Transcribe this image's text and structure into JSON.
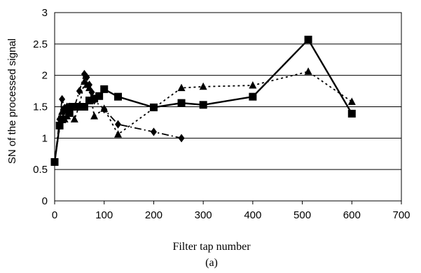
{
  "chart_data": {
    "type": "line",
    "xlabel": "Filter tap number",
    "ylabel": "SN of the processed signal",
    "caption": "(a)",
    "xlim": [
      0,
      700
    ],
    "ylim": [
      0,
      3
    ],
    "x_ticks": [
      "0",
      "100",
      "200",
      "300",
      "400",
      "500",
      "600",
      "700"
    ],
    "y_ticks": [
      "0",
      "0.5",
      "1",
      "1.5",
      "2",
      "2.5",
      "3"
    ],
    "grid": "horizontal",
    "legend": "none",
    "series": [
      {
        "marker": "square",
        "line": "solid",
        "color": "#000000",
        "x": [
          0,
          10,
          15,
          20,
          25,
          30,
          35,
          40,
          50,
          60,
          70,
          80,
          90,
          100,
          128,
          200,
          256,
          300,
          400,
          512,
          600
        ],
        "y": [
          0.62,
          1.2,
          1.3,
          1.45,
          1.45,
          1.4,
          1.5,
          1.5,
          1.5,
          1.5,
          1.6,
          1.63,
          1.67,
          1.78,
          1.66,
          1.49,
          1.56,
          1.53,
          1.66,
          2.57,
          1.39
        ]
      },
      {
        "marker": "triangle",
        "line": "dotted",
        "color": "#000000",
        "x": [
          0,
          15,
          20,
          25,
          30,
          40,
          50,
          60,
          65,
          70,
          80,
          100,
          128,
          256,
          300,
          400,
          512,
          600
        ],
        "y": [
          0.62,
          1.42,
          1.3,
          1.35,
          1.5,
          1.3,
          1.52,
          1.9,
          1.85,
          1.8,
          1.35,
          1.47,
          1.06,
          1.8,
          1.82,
          1.84,
          2.06,
          1.58
        ]
      },
      {
        "marker": "diamond",
        "line": "dash-dot",
        "color": "#000000",
        "x": [
          0,
          10,
          15,
          20,
          25,
          30,
          40,
          50,
          60,
          65,
          70,
          75,
          80,
          100,
          128,
          200,
          256
        ],
        "y": [
          0.62,
          1.3,
          1.62,
          1.48,
          1.5,
          1.48,
          1.5,
          1.75,
          2.02,
          1.97,
          1.85,
          1.73,
          1.6,
          1.46,
          1.22,
          1.1,
          1.0
        ]
      }
    ]
  }
}
